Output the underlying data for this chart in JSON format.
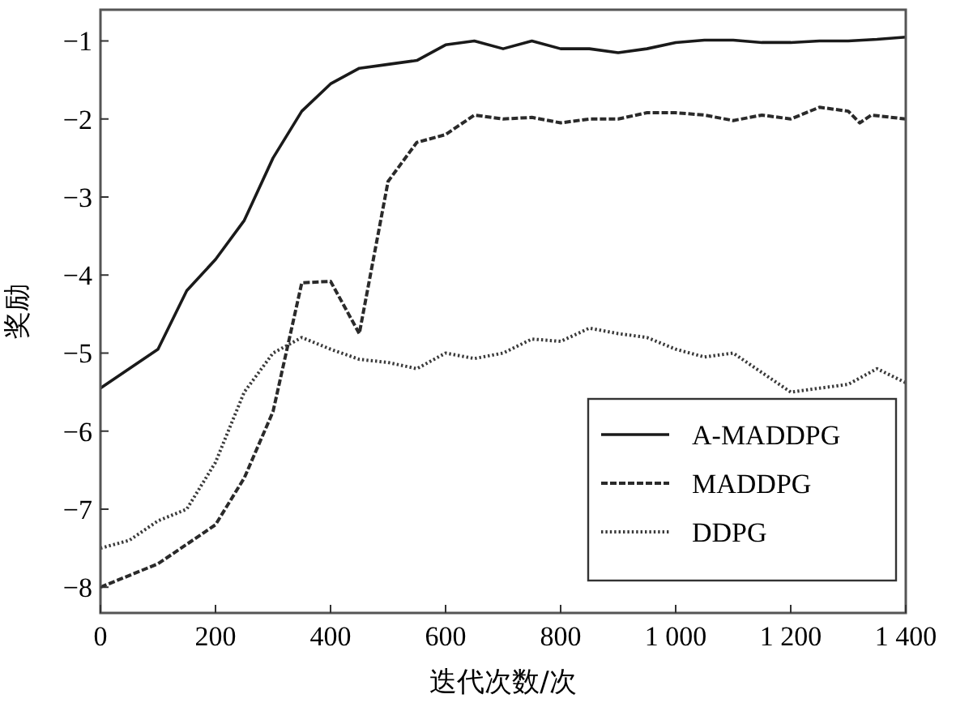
{
  "chart_data": {
    "type": "line",
    "xlabel": "迭代次数/次",
    "ylabel": "奖励",
    "xlim": [
      0,
      1400
    ],
    "ylim": [
      -8.33,
      -0.6
    ],
    "xticks": [
      0,
      200,
      400,
      600,
      800,
      {
        "value": 1000,
        "label": "1 000"
      },
      {
        "value": 1200,
        "label": "1 200"
      },
      {
        "value": 1400,
        "label": "1 400"
      }
    ],
    "yticks": [
      -8,
      -7,
      -6,
      -5,
      -4,
      -3,
      -2,
      -1
    ],
    "grid": false,
    "legend": "bottom right",
    "marker": "none",
    "series": [
      {
        "name": "A-MADDPG",
        "color": "#1a1a1a",
        "line_style": "solid",
        "x": [
          0,
          50,
          100,
          150,
          200,
          250,
          300,
          350,
          400,
          450,
          500,
          550,
          600,
          650,
          700,
          750,
          800,
          850,
          900,
          950,
          1000,
          1050,
          1100,
          1150,
          1200,
          1250,
          1300,
          1350,
          1400
        ],
        "values": [
          -5.45,
          -5.2,
          -4.95,
          -4.2,
          -3.8,
          -3.3,
          -2.5,
          -1.9,
          -1.55,
          -1.35,
          -1.3,
          -1.25,
          -1.05,
          -1.0,
          -1.1,
          -1.0,
          -1.1,
          -1.1,
          -1.15,
          -1.1,
          -1.02,
          -0.99,
          -0.99,
          -1.02,
          -1.02,
          -1.0,
          -1.0,
          -0.98,
          -0.95
        ]
      },
      {
        "name": "MADDPG",
        "color": "#2a2a2a",
        "line_style": "dashed",
        "x": [
          0,
          50,
          100,
          150,
          200,
          250,
          300,
          350,
          400,
          450,
          500,
          550,
          600,
          650,
          700,
          750,
          800,
          850,
          900,
          950,
          1000,
          1050,
          1100,
          1150,
          1200,
          1250,
          1300,
          1320,
          1340,
          1400
        ],
        "values": [
          -8.0,
          -7.85,
          -7.7,
          -7.45,
          -7.2,
          -6.6,
          -5.75,
          -4.1,
          -4.08,
          -4.75,
          -2.8,
          -2.3,
          -2.2,
          -1.95,
          -2.0,
          -1.98,
          -2.05,
          -2.0,
          -2.0,
          -1.92,
          -1.92,
          -1.95,
          -2.02,
          -1.95,
          -2.0,
          -1.85,
          -1.9,
          -2.05,
          -1.95,
          -2.0
        ]
      },
      {
        "name": "DDPG",
        "color": "#3a3a3a",
        "line_style": "dotted",
        "x": [
          0,
          50,
          100,
          150,
          200,
          250,
          300,
          350,
          400,
          450,
          500,
          550,
          600,
          650,
          700,
          750,
          800,
          850,
          900,
          950,
          1000,
          1050,
          1100,
          1150,
          1200,
          1250,
          1300,
          1350,
          1400
        ],
        "values": [
          -7.5,
          -7.4,
          -7.15,
          -7.0,
          -6.4,
          -5.5,
          -5.0,
          -4.8,
          -4.95,
          -5.08,
          -5.12,
          -5.2,
          -5.0,
          -5.07,
          -5.0,
          -4.82,
          -4.85,
          -4.68,
          -4.75,
          -4.8,
          -4.95,
          -5.05,
          -5.0,
          -5.25,
          -5.5,
          -5.45,
          -5.4,
          -5.2,
          -5.38
        ]
      }
    ]
  }
}
